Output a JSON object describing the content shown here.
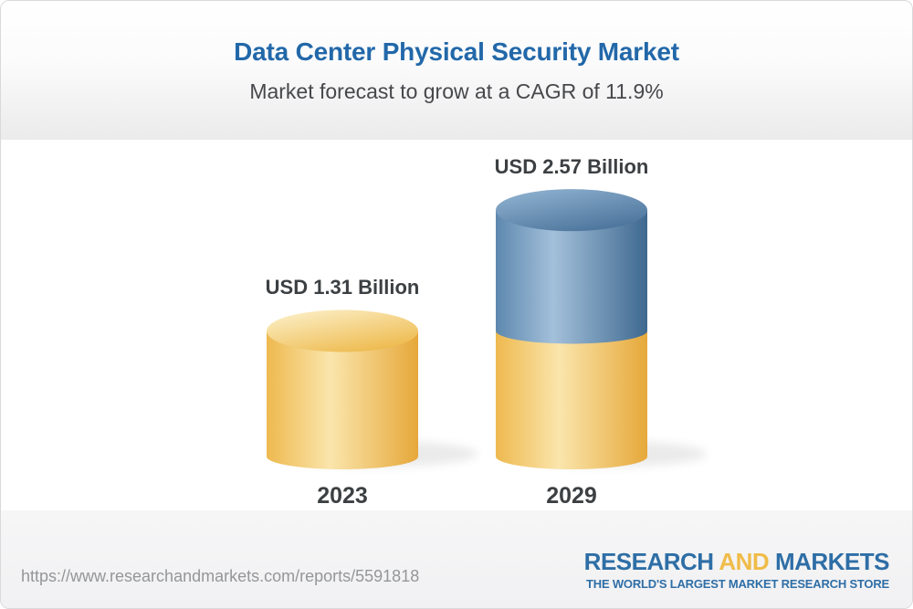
{
  "header": {
    "title": "Data Center Physical Security Market",
    "subtitle": "Market forecast to grow at a CAGR of 11.9%",
    "title_color": "#2268A9",
    "subtitle_color": "#47484B"
  },
  "chart_data": {
    "type": "bar",
    "subtype": "3d-cylinder-columns",
    "title": "Data Center Physical Security Market",
    "subtitle": "Market forecast to grow at a CAGR of 11.9%",
    "cagr_percent": 11.9,
    "unit": "USD Billion",
    "categories": [
      "2023",
      "2029"
    ],
    "values": [
      1.31,
      2.57
    ],
    "bars": [
      {
        "category": "2023",
        "value": 1.31,
        "label": "USD 1.31 Billion",
        "segments": [
          {
            "value": 1.31,
            "color_key": "yellow"
          }
        ]
      },
      {
        "category": "2029",
        "value": 2.57,
        "label": "USD 2.57 Billion",
        "segments": [
          {
            "value": 1.31,
            "color_key": "yellow"
          },
          {
            "value": 1.26,
            "color_key": "blue"
          }
        ]
      }
    ],
    "palette": {
      "yellow": {
        "body": [
          [
            0,
            "#EEB94F"
          ],
          [
            0.42,
            "#FAE5AC"
          ],
          [
            1,
            "#E6A83A"
          ]
        ],
        "cap": [
          [
            0,
            "#FCEFC7"
          ],
          [
            1,
            "#EDB848"
          ]
        ]
      },
      "blue": {
        "body": [
          [
            0,
            "#5E88AF"
          ],
          [
            0.38,
            "#A3C0DA"
          ],
          [
            1,
            "#3F6990"
          ]
        ],
        "cap": [
          [
            0,
            "#8FB2D0"
          ],
          [
            1,
            "#497199"
          ]
        ]
      }
    },
    "value_label_color": "#3C4043",
    "axis_label_color": "#3C4043",
    "legend": "none",
    "grid": false
  },
  "footer": {
    "url": "https://www.researchandmarkets.com/reports/5591818",
    "logo": {
      "word1": "RESEARCH",
      "word2": "AND",
      "word3": "MARKETS",
      "tagline": "THE WORLD'S LARGEST MARKET RESEARCH STORE",
      "blue": "#2E6EA6",
      "yellow": "#F0BC49"
    }
  }
}
